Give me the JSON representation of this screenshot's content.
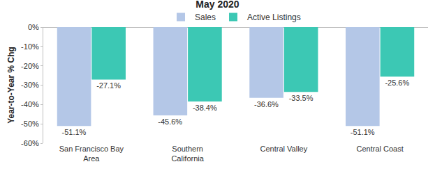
{
  "chart_data": {
    "type": "bar",
    "title": "May 2020",
    "y_label": "Year-to-Year % Chg",
    "categories": [
      "San Francisco Bay Area",
      "Southern California",
      "Central Valley",
      "Central Coast"
    ],
    "series": [
      {
        "name": "Sales",
        "color": "#b4c7e7",
        "values": [
          -51.1,
          -45.6,
          -36.6,
          -51.1
        ],
        "value_labels": [
          "-51.1%",
          "-45.6%",
          "-36.6%",
          "-51.1%"
        ]
      },
      {
        "name": "Active Listings",
        "color": "#3cc8b4",
        "values": [
          -27.1,
          -38.4,
          -33.5,
          -25.6
        ],
        "value_labels": [
          "-27.1%",
          "-38.4%",
          "-33.5%",
          "-25.6%"
        ]
      }
    ],
    "ylim": [
      -60,
      0
    ],
    "yticks": [
      {
        "value": 0,
        "label": "0%"
      },
      {
        "value": -10,
        "label": "-10%"
      },
      {
        "value": -20,
        "label": "-20%"
      },
      {
        "value": -30,
        "label": "-30%"
      },
      {
        "value": -40,
        "label": "-40%"
      },
      {
        "value": -50,
        "label": "-50%"
      },
      {
        "value": -60,
        "label": "-60%"
      }
    ],
    "grid": false,
    "legend": "top",
    "data_labels": true
  }
}
